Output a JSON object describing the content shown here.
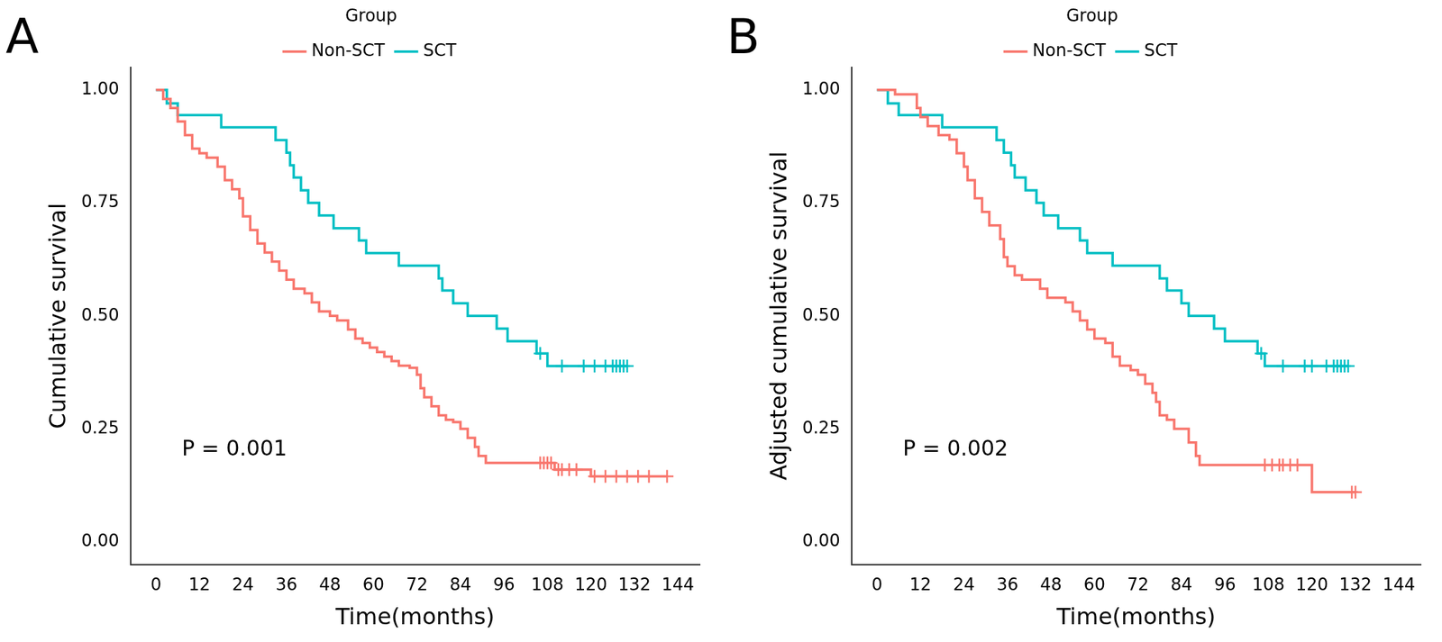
{
  "chart_data": [
    {
      "type": "line",
      "title": "A",
      "x_label": "Time(months)",
      "y_label": "Cumulative survival",
      "legend_title": "Group",
      "legend": "top",
      "grid": false,
      "line_style": "steps",
      "annotation": "P = 0.001",
      "xlim": [
        -7,
        150
      ],
      "xticks": [
        0,
        12,
        24,
        36,
        48,
        60,
        72,
        84,
        96,
        108,
        120,
        132,
        144
      ],
      "ylim": [
        -0.05,
        1.05
      ],
      "yticks": [
        {
          "value": 0,
          "label": "0.00"
        },
        {
          "value": 0.25,
          "label": "0.25"
        },
        {
          "value": 0.5,
          "label": "0.50"
        },
        {
          "value": 0.75,
          "label": "0.75"
        },
        {
          "value": 1,
          "label": "1.00"
        }
      ],
      "series": [
        {
          "name": "Non-SCT",
          "color": "#F8766D",
          "marker": "cross",
          "x": [
            0,
            2,
            4,
            6,
            8,
            10,
            12,
            14,
            17,
            19,
            21,
            23,
            24,
            26,
            28,
            30,
            32,
            34,
            36,
            38,
            41,
            43,
            45,
            48,
            50,
            53,
            55,
            57,
            59,
            61,
            63,
            65,
            67,
            70,
            72,
            73,
            74,
            76,
            78,
            80,
            82,
            84,
            86,
            88,
            89,
            91,
            110,
            120,
            141
          ],
          "values": [
            1.0,
            0.98,
            0.96,
            0.93,
            0.9,
            0.87,
            0.86,
            0.85,
            0.83,
            0.8,
            0.78,
            0.76,
            0.72,
            0.69,
            0.66,
            0.64,
            0.62,
            0.6,
            0.58,
            0.56,
            0.55,
            0.53,
            0.51,
            0.5,
            0.49,
            0.47,
            0.45,
            0.44,
            0.43,
            0.42,
            0.41,
            0.4,
            0.39,
            0.385,
            0.37,
            0.34,
            0.32,
            0.3,
            0.28,
            0.27,
            0.265,
            0.25,
            0.23,
            0.21,
            0.19,
            0.175,
            0.16,
            0.145,
            0.145
          ],
          "censored_x": [
            106,
            107,
            108,
            109,
            111,
            112,
            114,
            116,
            121,
            124,
            127,
            130,
            133,
            136,
            141
          ],
          "censored_y": [
            0.175,
            0.175,
            0.175,
            0.175,
            0.16,
            0.16,
            0.16,
            0.16,
            0.145,
            0.145,
            0.145,
            0.145,
            0.145,
            0.145,
            0.145
          ]
        },
        {
          "name": "SCT",
          "color": "#00BFC4",
          "marker": "cross",
          "x": [
            0,
            3,
            6,
            18,
            33,
            36,
            37,
            38,
            40,
            42,
            45,
            49,
            56,
            58,
            67,
            78,
            79,
            82,
            86,
            94,
            97,
            105,
            108,
            130
          ],
          "values": [
            1.0,
            0.97,
            0.944,
            0.917,
            0.889,
            0.861,
            0.833,
            0.806,
            0.778,
            0.75,
            0.722,
            0.694,
            0.667,
            0.639,
            0.611,
            0.583,
            0.556,
            0.528,
            0.5,
            0.472,
            0.444,
            0.417,
            0.389,
            0.389
          ],
          "censored_x": [
            106,
            112,
            118,
            121,
            124,
            126,
            127,
            128,
            129,
            130
          ],
          "censored_y": [
            0.417,
            0.389,
            0.389,
            0.389,
            0.389,
            0.389,
            0.389,
            0.389,
            0.389,
            0.389
          ]
        }
      ]
    },
    {
      "type": "line",
      "title": "B",
      "x_label": "Time(months)",
      "y_label": "Adjusted cumulative survival",
      "legend_title": "Group",
      "legend": "top",
      "grid": false,
      "line_style": "steps",
      "annotation": "P = 0.002",
      "xlim": [
        -7,
        150
      ],
      "xticks": [
        0,
        12,
        24,
        36,
        48,
        60,
        72,
        84,
        96,
        108,
        120,
        132,
        144
      ],
      "ylim": [
        -0.05,
        1.05
      ],
      "yticks": [
        {
          "value": 0,
          "label": "0.00"
        },
        {
          "value": 0.25,
          "label": "0.25"
        },
        {
          "value": 0.5,
          "label": "0.50"
        },
        {
          "value": 0.75,
          "label": "0.75"
        },
        {
          "value": 1,
          "label": "1.00"
        }
      ],
      "series": [
        {
          "name": "Non-SCT",
          "color": "#F8766D",
          "marker": "cross",
          "x": [
            0,
            5,
            11,
            12,
            14,
            17,
            20,
            22,
            24,
            25,
            27,
            29,
            31,
            34,
            35,
            36,
            38,
            40,
            45,
            47,
            52,
            54,
            56,
            58,
            60,
            63,
            65,
            67,
            70,
            72,
            74,
            76,
            77,
            78,
            80,
            82,
            86,
            88,
            89,
            120,
            132
          ],
          "values": [
            1.0,
            0.99,
            0.96,
            0.94,
            0.92,
            0.9,
            0.89,
            0.86,
            0.83,
            0.8,
            0.76,
            0.73,
            0.7,
            0.67,
            0.63,
            0.61,
            0.59,
            0.58,
            0.56,
            0.54,
            0.53,
            0.51,
            0.49,
            0.47,
            0.45,
            0.44,
            0.41,
            0.39,
            0.38,
            0.37,
            0.35,
            0.33,
            0.31,
            0.28,
            0.27,
            0.25,
            0.22,
            0.19,
            0.17,
            0.11,
            0.11
          ],
          "censored_x": [
            107,
            109,
            111,
            112,
            114,
            116,
            131,
            132
          ],
          "censored_y": [
            0.17,
            0.17,
            0.17,
            0.17,
            0.17,
            0.17,
            0.11,
            0.11
          ]
        },
        {
          "name": "SCT",
          "color": "#00BFC4",
          "marker": "cross",
          "x": [
            0,
            3,
            6,
            18,
            33,
            35,
            37,
            38,
            41,
            44,
            46,
            50,
            56,
            58,
            65,
            78,
            80,
            84,
            86,
            93,
            96,
            105,
            107,
            130
          ],
          "values": [
            1.0,
            0.97,
            0.944,
            0.917,
            0.889,
            0.861,
            0.833,
            0.806,
            0.778,
            0.75,
            0.722,
            0.694,
            0.667,
            0.639,
            0.611,
            0.583,
            0.556,
            0.528,
            0.5,
            0.472,
            0.444,
            0.417,
            0.389,
            0.389
          ],
          "censored_x": [
            106,
            112,
            118,
            120,
            124,
            126,
            127,
            128,
            129,
            130
          ],
          "censored_y": [
            0.417,
            0.389,
            0.389,
            0.389,
            0.389,
            0.389,
            0.389,
            0.389,
            0.389,
            0.389
          ]
        }
      ]
    }
  ]
}
